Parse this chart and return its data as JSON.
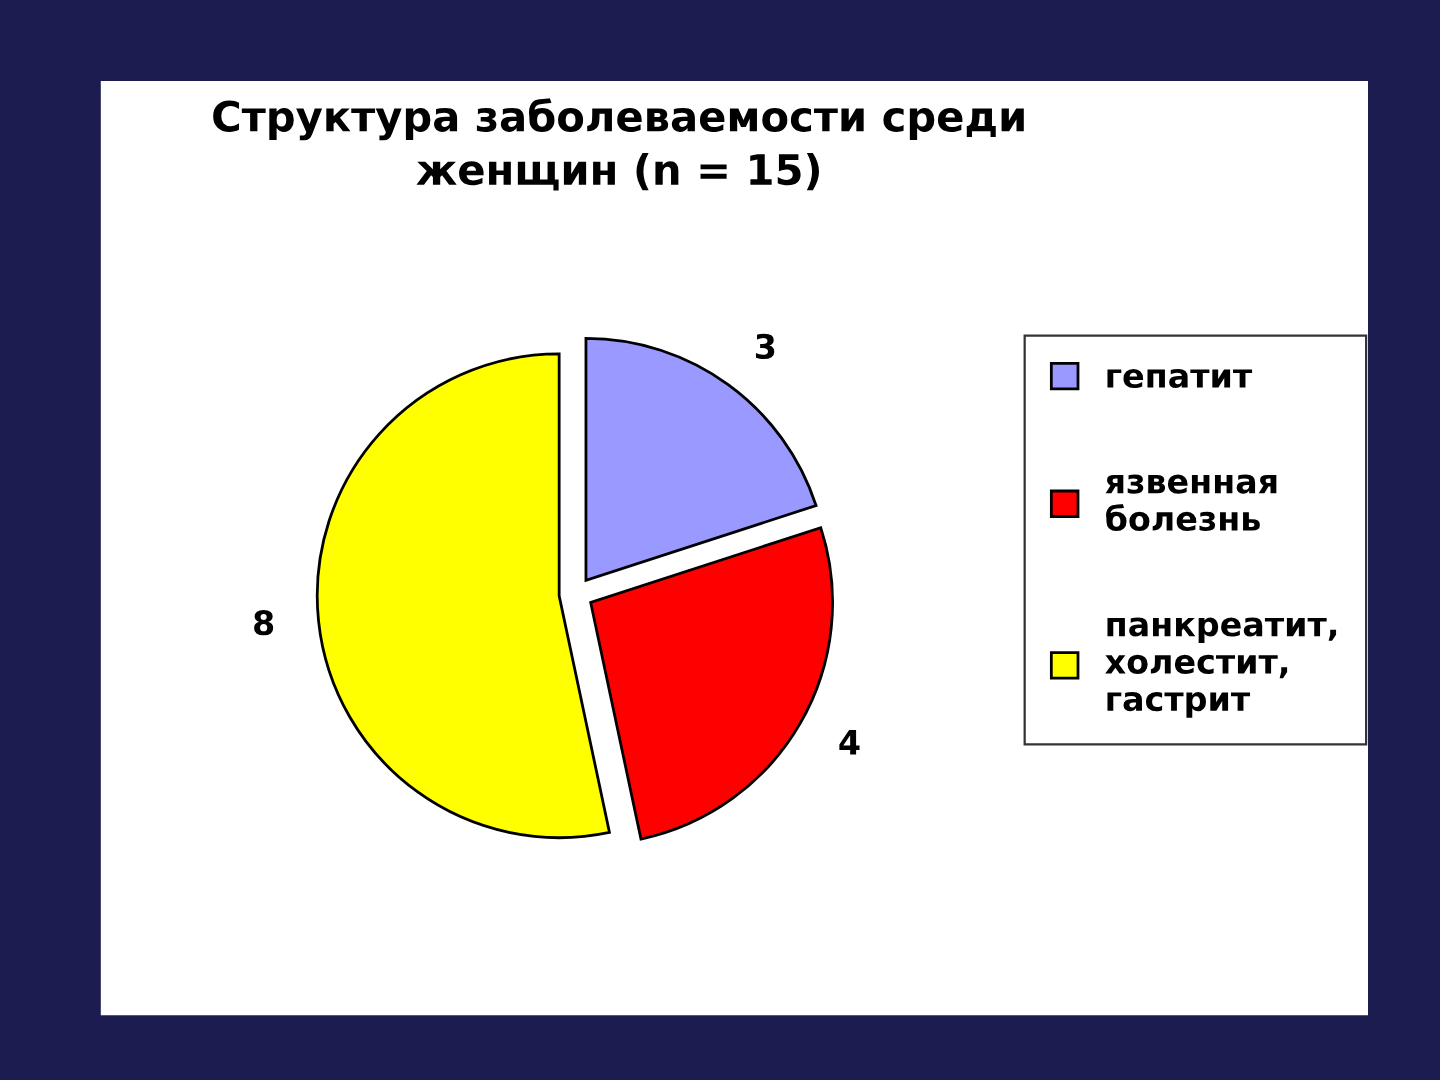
{
  "chart_data": {
    "type": "pie",
    "title": "Структура заболеваемости среди\nженщин (n = 15)",
    "categories": [
      "гепатит",
      "язвенная\nболезнь",
      "панкреатит,\nхолестит,\nгастрит"
    ],
    "values": [
      3,
      4,
      8
    ],
    "colors": [
      "#9999ff",
      "#ff0000",
      "#ffff00"
    ],
    "data_labels": true,
    "legend": "right"
  }
}
